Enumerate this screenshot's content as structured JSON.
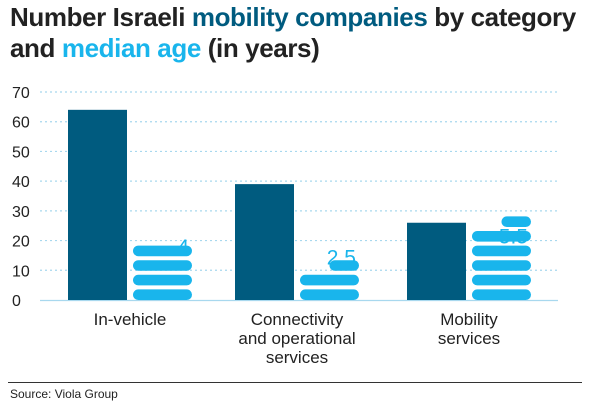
{
  "title": {
    "pre": "Number Israeli ",
    "highlight1": "mobility companies",
    "mid": " by category and ",
    "highlight2": "median age",
    "post": " (in years)"
  },
  "source": "Source: Viola Group",
  "colors": {
    "companies": "#005b7f",
    "median_age": "#19b5ec",
    "text": "#222222",
    "gridline": "#a8d8ee",
    "divider": "#333333"
  },
  "chart_data": {
    "type": "bar",
    "categories": [
      [
        "In-vehicle"
      ],
      [
        "Connectivity",
        "and operational",
        "services"
      ],
      [
        "Mobility",
        "services"
      ]
    ],
    "series": [
      {
        "values": [
          64,
          39,
          26
        ]
      },
      {
        "values": [
          4,
          2.5,
          5.5
        ],
        "labels": [
          "4",
          "2.5",
          "5.5"
        ]
      }
    ],
    "ylim": [
      0,
      70
    ],
    "yticks": [
      "0",
      "10",
      "20",
      "30",
      "40",
      "50",
      "60",
      "70"
    ],
    "grid": true,
    "legend": "none"
  }
}
